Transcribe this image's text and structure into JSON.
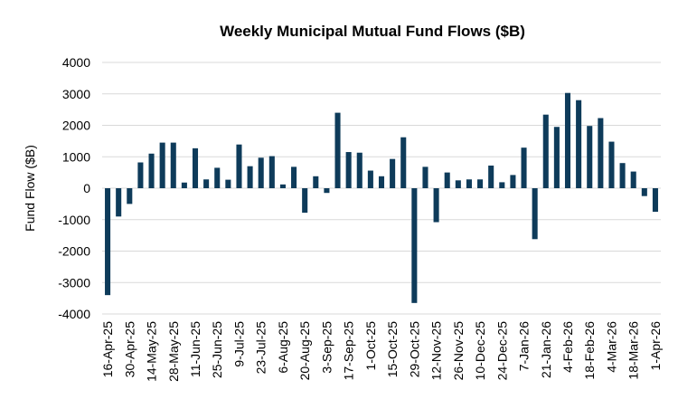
{
  "chart_data": {
    "type": "bar",
    "title": "Weekly Municipal Mutual Fund Flows ($B)",
    "xlabel": "",
    "ylabel": "Fund Flow ($B)",
    "ylim": [
      -4000,
      4000
    ],
    "yticks": [
      4000,
      3000,
      2000,
      1000,
      0,
      -1000,
      -2000,
      -3000,
      -4000
    ],
    "grid": true,
    "bar_color": "#0e3b5a",
    "categories": [
      "16-Apr-25",
      "23-Apr-25",
      "30-Apr-25",
      "7-May-25",
      "14-May-25",
      "21-May-25",
      "28-May-25",
      "4-Jun-25",
      "11-Jun-25",
      "18-Jun-25",
      "25-Jun-25",
      "2-Jul-25",
      "9-Jul-25",
      "16-Jul-25",
      "23-Jul-25",
      "30-Jul-25",
      "6-Aug-25",
      "13-Aug-25",
      "20-Aug-25",
      "27-Aug-25",
      "3-Sep-25",
      "10-Sep-25",
      "17-Sep-25",
      "24-Sep-25",
      "1-Oct-25",
      "8-Oct-25",
      "15-Oct-25",
      "22-Oct-25",
      "29-Oct-25",
      "5-Nov-25",
      "12-Nov-25",
      "19-Nov-25",
      "26-Nov-25",
      "3-Dec-25",
      "10-Dec-25",
      "17-Dec-25",
      "24-Dec-25",
      "31-Dec-25",
      "7-Jan-26",
      "14-Jan-26",
      "21-Jan-26",
      "28-Jan-26",
      "4-Feb-26",
      "11-Feb-26",
      "18-Feb-26",
      "25-Feb-26",
      "4-Mar-26",
      "11-Mar-26",
      "18-Mar-26",
      "25-Mar-26",
      "1-Apr-26"
    ],
    "tick_labels": [
      "16-Apr-25",
      "30-Apr-25",
      "14-May-25",
      "28-May-25",
      "11-Jun-25",
      "25-Jun-25",
      "9-Jul-25",
      "23-Jul-25",
      "6-Aug-25",
      "20-Aug-25",
      "3-Sep-25",
      "17-Sep-25",
      "1-Oct-25",
      "15-Oct-25",
      "29-Oct-25",
      "12-Nov-25",
      "26-Nov-25",
      "10-Dec-25",
      "24-Dec-25",
      "7-Jan-26",
      "21-Jan-26",
      "4-Feb-26",
      "18-Feb-26",
      "4-Mar-26",
      "18-Mar-26",
      "1-Apr-26"
    ],
    "values": [
      -3400,
      -900,
      -500,
      820,
      1100,
      1450,
      1450,
      180,
      1270,
      280,
      650,
      270,
      1390,
      700,
      970,
      1020,
      120,
      680,
      -780,
      380,
      -150,
      2400,
      1150,
      1130,
      560,
      380,
      930,
      1620,
      -3650,
      680,
      -1080,
      500,
      250,
      280,
      280,
      720,
      190,
      420,
      1290,
      -1620,
      2340,
      1950,
      3030,
      2800,
      1980,
      2230,
      1480,
      800,
      530,
      -250,
      -750
    ]
  }
}
